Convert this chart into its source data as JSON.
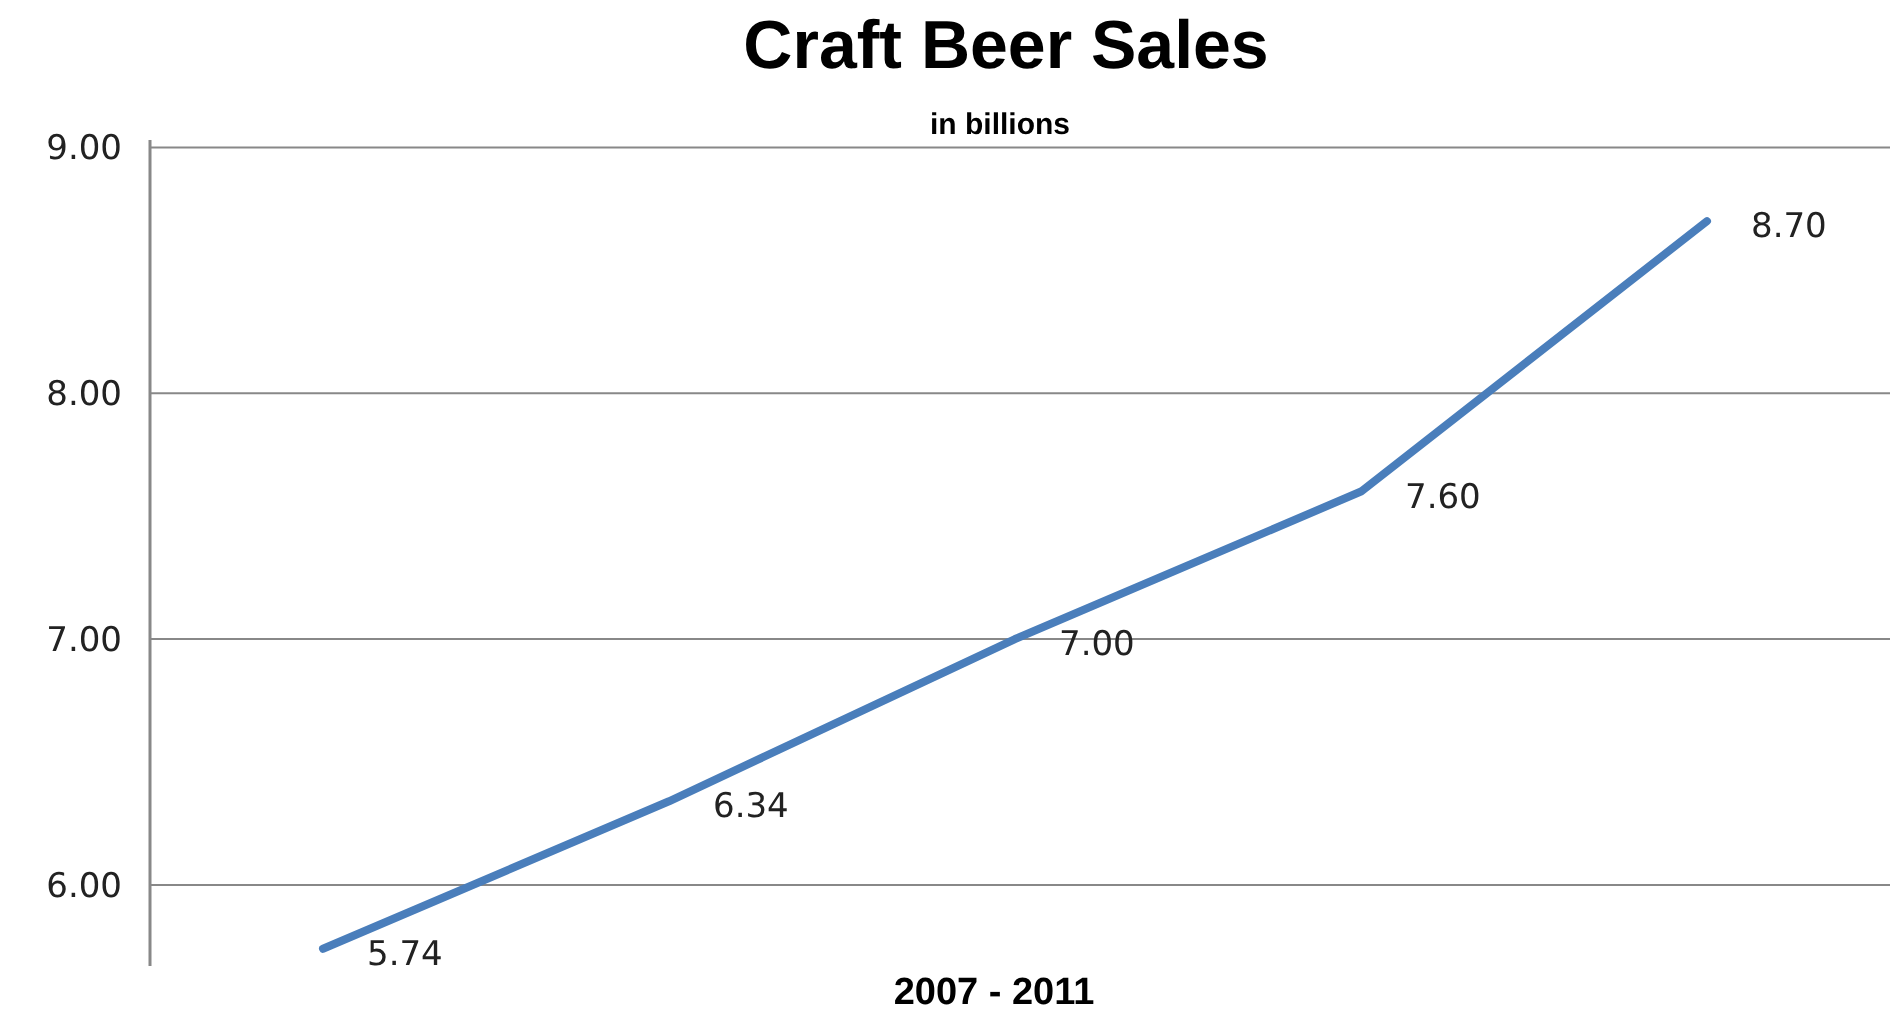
{
  "chart_data": {
    "type": "line",
    "title": "Craft Beer Sales",
    "subtitle": "in billions",
    "xlabel": "2007 - 2011",
    "categories": [
      null,
      null,
      null,
      null,
      null
    ],
    "series": [
      {
        "color": "#4a7ebb",
        "values": [
          5.74,
          6.34,
          7.0,
          7.6,
          8.7
        ],
        "value_labels": [
          "5.74",
          "6.34",
          "7.00",
          "7.60",
          "8.70"
        ]
      }
    ],
    "ylim": [
      5.67,
      9.03
    ],
    "yticks": [
      {
        "value": 6,
        "label": "6.00"
      },
      {
        "value": 7,
        "label": "7.00"
      },
      {
        "value": 8,
        "label": "8.00"
      },
      {
        "value": 9,
        "label": "9.00"
      }
    ],
    "grid": "y",
    "marker": "none",
    "line_style": "solid"
  }
}
